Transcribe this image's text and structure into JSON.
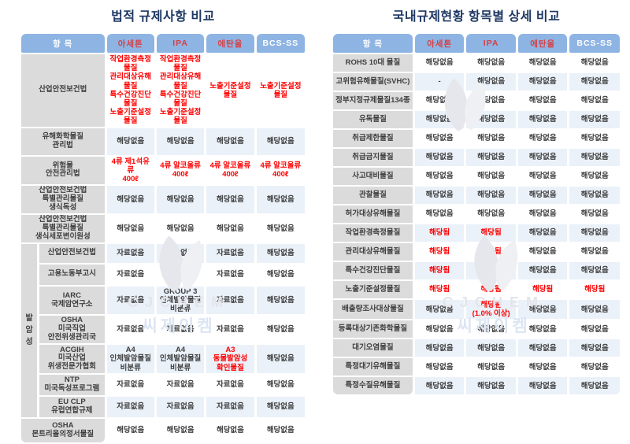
{
  "watermark": {
    "brand": "CJCHEM",
    "brand_kr": "씨제이켐"
  },
  "left_table": {
    "title": "법적 규제사항 비교",
    "group_label": "발암성",
    "columns": [
      {
        "label": "항 목",
        "red": false
      },
      {
        "label": "아세톤",
        "red": true
      },
      {
        "label": "IPA",
        "red": true
      },
      {
        "label": "에탄올",
        "red": true
      },
      {
        "label": "BCS-SS",
        "red": false
      }
    ],
    "rows": [
      {
        "label": "산업안전보건법",
        "group": false,
        "cells": [
          {
            "t": "작업환경측정물질\n관리대상유해물질\n특수건강진단물질\n노출기준설정물질",
            "red": true
          },
          {
            "t": "작업환경측정물질\n관리대상유해물질\n특수건강진단물질\n노출기준설정물질",
            "red": true
          },
          {
            "t": "노출기준설정물질",
            "red": true
          },
          {
            "t": "노출기준설정물질",
            "red": true
          }
        ]
      },
      {
        "label": "유해화학물질\n관리법",
        "group": false,
        "cells": [
          {
            "t": "해당없음",
            "red": false
          },
          {
            "t": "해당없음",
            "red": false
          },
          {
            "t": "해당없음",
            "red": false
          },
          {
            "t": "해당없음",
            "red": false
          }
        ]
      },
      {
        "label": "위험물\n안전관리법",
        "group": false,
        "cells": [
          {
            "t": "4류 제1석유류\n400ℓ",
            "red": true
          },
          {
            "t": "4류 알코올류\n400ℓ",
            "red": true
          },
          {
            "t": "4류 알코올류\n400ℓ",
            "red": true
          },
          {
            "t": "4류 알코올류\n400ℓ",
            "red": true
          }
        ]
      },
      {
        "label": "산업안전보건법\n특별관리물질\n생식독성",
        "group": false,
        "cells": [
          {
            "t": "해당없음",
            "red": false
          },
          {
            "t": "해당없음",
            "red": false
          },
          {
            "t": "해당없음",
            "red": false
          },
          {
            "t": "해당없음",
            "red": false
          }
        ]
      },
      {
        "label": "산업안전보건법\n특별관리물질\n생식세포변이원성",
        "group": false,
        "cells": [
          {
            "t": "해당없음",
            "red": false
          },
          {
            "t": "해당없음",
            "red": false
          },
          {
            "t": "해당없음",
            "red": false
          },
          {
            "t": "해당없음",
            "red": false
          }
        ]
      },
      {
        "label": "산업안전보건법",
        "group": true,
        "cells": [
          {
            "t": "자료없음",
            "red": false
          },
          {
            "t": "자료없음",
            "red": false
          },
          {
            "t": "자료없음",
            "red": false
          },
          {
            "t": "해당없음",
            "red": false
          }
        ]
      },
      {
        "label": "고용노동부고시",
        "group": true,
        "cells": [
          {
            "t": "자료없음",
            "red": false
          },
          {
            "t": "자료없음",
            "red": false
          },
          {
            "t": "자료없음",
            "red": false
          },
          {
            "t": "해당없음",
            "red": false
          }
        ]
      },
      {
        "label": "IARC\n국제암연구소",
        "group": true,
        "cells": [
          {
            "t": "자료없음",
            "red": false
          },
          {
            "t": "GROUP 3\n인체발암물질\n비분류",
            "red": false
          },
          {
            "t": "자료없음",
            "red": false
          },
          {
            "t": "해당없음",
            "red": false
          }
        ]
      },
      {
        "label": "OSHA\n미국직업\n안전위생관리국",
        "group": true,
        "cells": [
          {
            "t": "자료없음",
            "red": false
          },
          {
            "t": "자료없음",
            "red": false
          },
          {
            "t": "자료없음",
            "red": false
          },
          {
            "t": "해당없음",
            "red": false
          }
        ]
      },
      {
        "label": "ACGIH\n미국산업\n위생전문가협회",
        "group": true,
        "cells": [
          {
            "t": "A4\n인체발암물질\n비분류",
            "red": false
          },
          {
            "t": "A4\n인체발암물질\n비분류",
            "red": false
          },
          {
            "t": "A3\n동물발암성\n확인물질",
            "red": true
          },
          {
            "t": "해당없음",
            "red": false
          }
        ]
      },
      {
        "label": "NTP\n미국독성프로그램",
        "group": true,
        "cells": [
          {
            "t": "자료없음",
            "red": false
          },
          {
            "t": "자료없음",
            "red": false
          },
          {
            "t": "자료없음",
            "red": false
          },
          {
            "t": "해당없음",
            "red": false
          }
        ]
      },
      {
        "label": "EU CLP\n유럽연합규제",
        "group": true,
        "cells": [
          {
            "t": "자료없음",
            "red": false
          },
          {
            "t": "자료없음",
            "red": false
          },
          {
            "t": "자료없음",
            "red": false
          },
          {
            "t": "해당없음",
            "red": false
          }
        ]
      },
      {
        "label": "OSHA\n몬트리올의정서물질",
        "group": false,
        "cells": [
          {
            "t": "해당없음",
            "red": false
          },
          {
            "t": "해당없음",
            "red": false
          },
          {
            "t": "해당없음",
            "red": false
          },
          {
            "t": "해당없음",
            "red": false
          }
        ]
      }
    ]
  },
  "right_table": {
    "title": "국내규제현황 항목별 상세 비교",
    "columns": [
      {
        "label": "항 목",
        "red": false
      },
      {
        "label": "아세톤",
        "red": true
      },
      {
        "label": "IPA",
        "red": true
      },
      {
        "label": "에탄올",
        "red": true
      },
      {
        "label": "BCS-SS",
        "red": false
      }
    ],
    "rows": [
      {
        "label": "ROHS 10대 물질",
        "cells": [
          {
            "t": "해당없음",
            "red": false
          },
          {
            "t": "해당없음",
            "red": false
          },
          {
            "t": "해당없음",
            "red": false
          },
          {
            "t": "해당없음",
            "red": false
          }
        ]
      },
      {
        "label": "고위험유해물질(SVHC)",
        "cells": [
          {
            "t": "-",
            "red": false
          },
          {
            "t": "해당없음",
            "red": false
          },
          {
            "t": "해당없음",
            "red": false
          },
          {
            "t": "해당없음",
            "red": false
          }
        ]
      },
      {
        "label": "정부지정규제물질134종",
        "cells": [
          {
            "t": "해당없음",
            "red": false
          },
          {
            "t": "해당없음",
            "red": false
          },
          {
            "t": "해당없음",
            "red": false
          },
          {
            "t": "해당없음",
            "red": false
          }
        ]
      },
      {
        "label": "유독물질",
        "cells": [
          {
            "t": "해당없음",
            "red": false
          },
          {
            "t": "해당없음",
            "red": false
          },
          {
            "t": "해당없음",
            "red": false
          },
          {
            "t": "해당없음",
            "red": false
          }
        ]
      },
      {
        "label": "취급제한물질",
        "cells": [
          {
            "t": "해당없음",
            "red": false
          },
          {
            "t": "해당없음",
            "red": false
          },
          {
            "t": "해당없음",
            "red": false
          },
          {
            "t": "해당없음",
            "red": false
          }
        ]
      },
      {
        "label": "취급금지물질",
        "cells": [
          {
            "t": "해당없음",
            "red": false
          },
          {
            "t": "해당없음",
            "red": false
          },
          {
            "t": "해당없음",
            "red": false
          },
          {
            "t": "해당없음",
            "red": false
          }
        ]
      },
      {
        "label": "사고대비물질",
        "cells": [
          {
            "t": "해당없음",
            "red": false
          },
          {
            "t": "해당없음",
            "red": false
          },
          {
            "t": "해당없음",
            "red": false
          },
          {
            "t": "해당없음",
            "red": false
          }
        ]
      },
      {
        "label": "관찰물질",
        "cells": [
          {
            "t": "해당없음",
            "red": false
          },
          {
            "t": "해당없음",
            "red": false
          },
          {
            "t": "해당없음",
            "red": false
          },
          {
            "t": "해당없음",
            "red": false
          }
        ]
      },
      {
        "label": "허가대상유해물질",
        "cells": [
          {
            "t": "해당없음",
            "red": false
          },
          {
            "t": "해당없음",
            "red": false
          },
          {
            "t": "해당없음",
            "red": false
          },
          {
            "t": "해당없음",
            "red": false
          }
        ]
      },
      {
        "label": "작업환경측정물질",
        "cells": [
          {
            "t": "해당됨",
            "red": true
          },
          {
            "t": "해당됨",
            "red": true
          },
          {
            "t": "해당없음",
            "red": false
          },
          {
            "t": "해당없음",
            "red": false
          }
        ]
      },
      {
        "label": "관리대상유해물질",
        "cells": [
          {
            "t": "해당됨",
            "red": true
          },
          {
            "t": "해당됨",
            "red": true
          },
          {
            "t": "해당없음",
            "red": false
          },
          {
            "t": "해당없음",
            "red": false
          }
        ]
      },
      {
        "label": "특수건강진단물질",
        "cells": [
          {
            "t": "해당됨",
            "red": true
          },
          {
            "t": "해당됨",
            "red": true
          },
          {
            "t": "해당없음",
            "red": false
          },
          {
            "t": "해당없음",
            "red": false
          }
        ]
      },
      {
        "label": "노출기준설정물질",
        "cells": [
          {
            "t": "해당됨",
            "red": true
          },
          {
            "t": "해당됨",
            "red": true
          },
          {
            "t": "해당됨",
            "red": true
          },
          {
            "t": "해당됨",
            "red": true
          }
        ]
      },
      {
        "label": "배출량조사대상물질",
        "cells": [
          {
            "t": "해당없음",
            "red": false
          },
          {
            "t": "해당됨\n(1.0% 이상)",
            "red": true
          },
          {
            "t": "해당없음",
            "red": false
          },
          {
            "t": "해당없음",
            "red": false
          }
        ]
      },
      {
        "label": "등록대상기존화학물질",
        "cells": [
          {
            "t": "해당없음",
            "red": false
          },
          {
            "t": "해당없음",
            "red": false
          },
          {
            "t": "해당없음",
            "red": false
          },
          {
            "t": "해당없음",
            "red": false
          }
        ]
      },
      {
        "label": "대기오염물질",
        "cells": [
          {
            "t": "해당없음",
            "red": false
          },
          {
            "t": "해당없음",
            "red": false
          },
          {
            "t": "해당없음",
            "red": false
          },
          {
            "t": "해당없음",
            "red": false
          }
        ]
      },
      {
        "label": "특정대기유해물질",
        "cells": [
          {
            "t": "해당없음",
            "red": false
          },
          {
            "t": "해당없음",
            "red": false
          },
          {
            "t": "해당없음",
            "red": false
          },
          {
            "t": "해당없음",
            "red": false
          }
        ]
      },
      {
        "label": "특정수질유해물질",
        "cells": [
          {
            "t": "해당없음",
            "red": false
          },
          {
            "t": "해당없음",
            "red": false
          },
          {
            "t": "해당없음",
            "red": false
          },
          {
            "t": "해당없음",
            "red": false
          }
        ]
      }
    ]
  }
}
